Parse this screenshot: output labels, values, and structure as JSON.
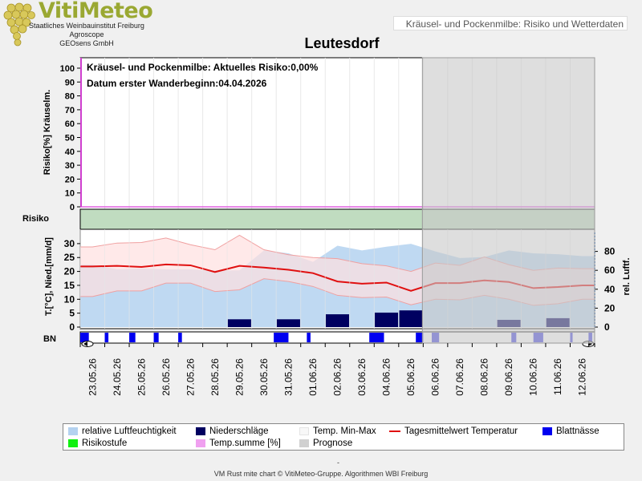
{
  "logo": {
    "title": "VitiMeteo",
    "lines": [
      "Staatliches Weinbauinstitut Freiburg",
      "Agroscope",
      "GEOsens GmbH"
    ]
  },
  "header": {
    "subtitle": "Kräusel- und Pockenmilbe: Risiko und Wetterdaten"
  },
  "chart_data": {
    "type": "line",
    "title": "Leutesdorf",
    "annotations": [
      "Kräusel- und Pockenmilbe: Aktuelles Risiko:0,00%",
      "Datum  erster Wanderbeginn:04.04.2026"
    ],
    "dates": [
      "23.05.26",
      "24.05.26",
      "25.05.26",
      "26.05.26",
      "27.05.26",
      "28.05.26",
      "29.05.26",
      "30.05.26",
      "31.05.26",
      "01.06.26",
      "02.06.26",
      "03.06.26",
      "04.06.26",
      "05.06.26",
      "06.06.26",
      "07.06.26",
      "08.06.26",
      "09.06.26",
      "10.06.26",
      "11.06.26",
      "12.06.26"
    ],
    "prognose_from": "06.06.26",
    "risk_panel": {
      "ylabel": "Risiko[%] Kräuselm.",
      "yticks": [
        0,
        10,
        20,
        30,
        40,
        50,
        60,
        70,
        80,
        90,
        100
      ],
      "ylim": [
        0,
        100
      ],
      "temp_sum_percent": 0
    },
    "risk_band_label": "Risiko",
    "weather_panel": {
      "ylabel_left": "T.[°C], Nied.[mm/d]",
      "ylabel_right": "rel. Luftf.",
      "yticks_left": [
        0,
        5,
        10,
        15,
        20,
        25,
        30
      ],
      "ylim_left": [
        0,
        34
      ],
      "yticks_right": [
        0,
        20,
        40,
        60,
        80
      ],
      "ylim_right": [
        0,
        100
      ],
      "temp_mean": [
        21.8,
        22.0,
        21.6,
        22.5,
        22.2,
        19.8,
        22.0,
        21.4,
        20.6,
        19.4,
        16.4,
        15.6,
        16.0,
        13.0,
        15.8,
        15.8,
        16.8,
        16.2,
        14.0,
        14.4,
        15.0
      ],
      "temp_max": [
        28.8,
        30.2,
        30.4,
        32.0,
        29.6,
        27.8,
        33.0,
        27.8,
        26.0,
        25.0,
        24.6,
        22.8,
        22.0,
        20.0,
        23.0,
        22.2,
        25.2,
        22.4,
        20.4,
        21.2,
        21.0
      ],
      "temp_min": [
        11.0,
        13.0,
        13.0,
        15.8,
        15.8,
        12.8,
        13.4,
        17.4,
        16.4,
        14.6,
        11.4,
        10.6,
        10.8,
        8.0,
        10.0,
        9.8,
        11.4,
        10.0,
        7.8,
        8.4,
        10.0
      ],
      "rel_humidity": [
        66,
        61,
        62,
        61,
        61,
        60,
        60,
        81,
        78,
        69,
        86,
        81,
        85,
        88,
        80,
        73,
        74,
        81,
        78,
        77,
        75
      ],
      "precip": [
        0,
        0,
        0,
        0,
        0,
        0,
        2.8,
        0,
        2.8,
        0,
        4.6,
        0,
        5.2,
        6.0,
        0,
        0,
        0,
        2.6,
        0,
        3.2,
        0
      ]
    },
    "leaf_wetness_label": "BN",
    "leaf_wetness_intervals": [
      [
        0,
        0.35
      ],
      [
        1.0,
        1.15
      ],
      [
        2.0,
        2.25
      ],
      [
        3.0,
        3.2
      ],
      [
        4.0,
        4.15
      ],
      [
        7.9,
        8.5
      ],
      [
        9.25,
        9.4
      ],
      [
        11.8,
        12.4
      ],
      [
        13.7,
        14.0
      ],
      [
        14.35,
        14.65
      ],
      [
        17.6,
        17.8
      ],
      [
        18.5,
        18.9
      ],
      [
        20.0,
        20.1
      ],
      [
        20.75,
        20.9
      ]
    ],
    "xlabel_dates_rotated": true
  },
  "legend": {
    "items": [
      {
        "label": "relative Luftfeuchtigkeit",
        "color": "#b4d2f0"
      },
      {
        "label": "Niederschläge",
        "color": "#000060"
      },
      {
        "label": "Temp. Min-Max",
        "color": "#f8f8f8"
      },
      {
        "label": "Tagesmittelwert Temperatur",
        "color": "#e01010"
      },
      {
        "label": "Blattnässe",
        "color": "#0000f0"
      },
      {
        "label": "Risikostufe",
        "color": "#10f010"
      },
      {
        "label": "Temp.summe [%]",
        "color": "#f0a0f0"
      },
      {
        "label": "Prognose",
        "color": "#d0d0d0"
      }
    ]
  },
  "footer": {
    "dash": "-",
    "text": "VM Rust mite chart © VitiMeteo-Gruppe. Algorithmen WBI Freiburg"
  }
}
